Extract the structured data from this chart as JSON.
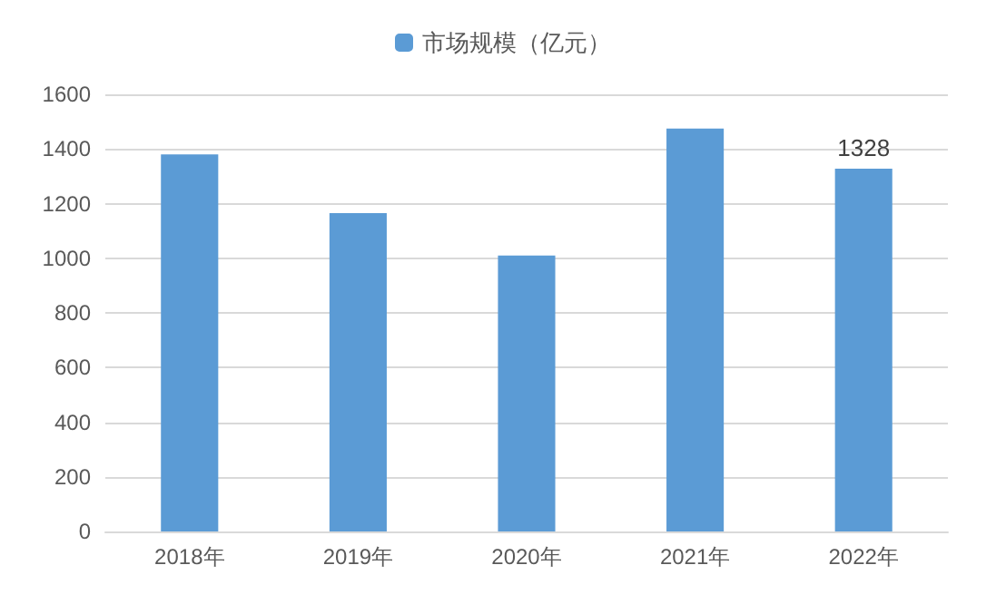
{
  "chart_data": {
    "type": "bar",
    "categories": [
      "2018年",
      "2019年",
      "2020年",
      "2021年",
      "2022年"
    ],
    "series": [
      {
        "name": "市场规模（亿元）",
        "color": "#5b9bd5",
        "values": [
          1380,
          1165,
          1010,
          1475,
          1328
        ],
        "value_labels": [
          null,
          null,
          null,
          null,
          "1328"
        ]
      }
    ],
    "ylim": [
      0,
      1600
    ],
    "yticks": [
      0,
      200,
      400,
      600,
      800,
      1000,
      1200,
      1400,
      1600
    ],
    "grid": "y",
    "legend": "top"
  }
}
